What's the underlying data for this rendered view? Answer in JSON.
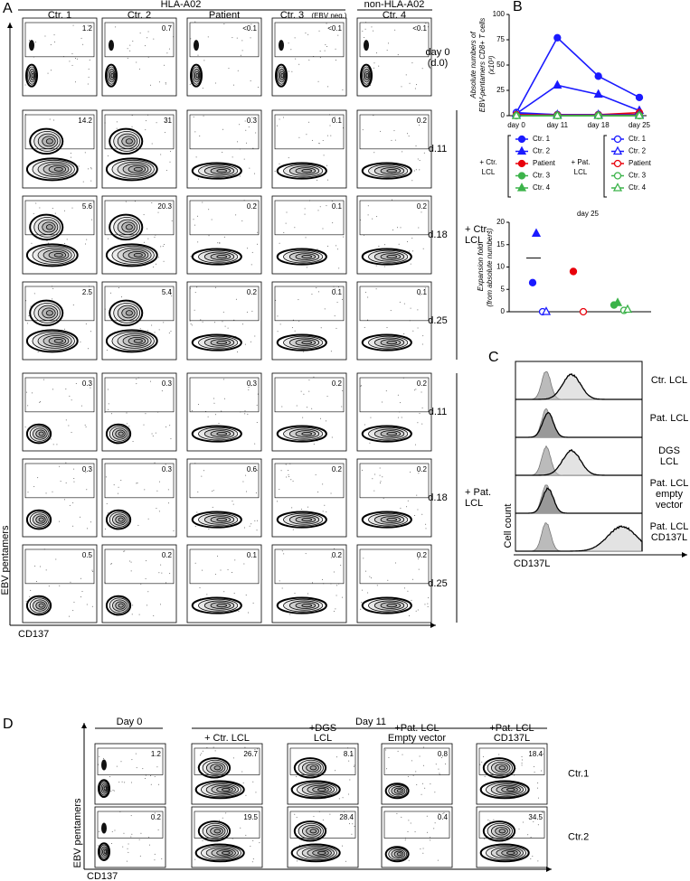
{
  "panel_labels": [
    "A",
    "B",
    "C",
    "D"
  ],
  "panel_a": {
    "group_headers": [
      "HLA-A02",
      "non-HLA-A02"
    ],
    "columns": [
      "Ctr. 1",
      "Ctr. 2",
      "Patient",
      "Ctr. 3",
      "Ctr. 4"
    ],
    "column_note": "(EBV neg.)",
    "y_label": "EBV pentamers",
    "x_label": "CD137",
    "rows": [
      {
        "label": [
          "day 0",
          "(d.0)"
        ],
        "values": [
          1.2,
          0.7,
          "<0.1",
          "<0.1",
          "<0.1"
        ]
      },
      {
        "label": [
          "d.11"
        ],
        "values": [
          14.2,
          31,
          0.3,
          0.1,
          0.2
        ]
      },
      {
        "label": [
          "d.18"
        ],
        "values": [
          5.6,
          20.3,
          0.2,
          0.1,
          0.2
        ]
      },
      {
        "label": [
          "d.25"
        ],
        "values": [
          2.5,
          5.4,
          0.2,
          0.1,
          0.1
        ]
      },
      {
        "label": [
          "d.11"
        ],
        "values": [
          0.3,
          0.3,
          0.3,
          0.2,
          0.2
        ]
      },
      {
        "label": [
          "d.18"
        ],
        "values": [
          0.3,
          0.3,
          0.6,
          0.2,
          0.2
        ]
      },
      {
        "label": [
          "d.25"
        ],
        "values": [
          0.5,
          0.2,
          0.1,
          0.2,
          0.2
        ]
      }
    ],
    "row_groups": [
      [
        "+ Ctr.",
        "LCL"
      ],
      [
        "+ Pat.",
        "LCL"
      ]
    ]
  },
  "chart_data": [
    {
      "type": "line",
      "y_label": [
        "Absolute numbers of",
        "EBV-pentamers CD8+ T cells",
        "(x10³)"
      ],
      "categories": [
        "day 0",
        "day 11",
        "day 18",
        "day 25"
      ],
      "ylim": [
        0,
        100
      ],
      "yticks": [
        0,
        25,
        50,
        75,
        100
      ],
      "legend_groups": [
        [
          "+ Ctr.",
          "LCL"
        ],
        [
          "+ Pat.",
          "LCL"
        ]
      ],
      "series": [
        {
          "name": "Ctr. 1",
          "color": "#1a1aff",
          "marker": "circle",
          "filled": true,
          "group": 0,
          "values": [
            3,
            77,
            39,
            18
          ]
        },
        {
          "name": "Ctr. 2",
          "color": "#1a1aff",
          "marker": "triangle",
          "filled": true,
          "group": 0,
          "values": [
            2,
            30,
            21,
            5
          ]
        },
        {
          "name": "Patient",
          "color": "#e8000b",
          "marker": "circle",
          "filled": true,
          "group": 0,
          "values": [
            1,
            1,
            1,
            3
          ]
        },
        {
          "name": "Ctr. 3",
          "color": "#3cb34a",
          "marker": "circle",
          "filled": true,
          "group": 0,
          "values": [
            0,
            0,
            0,
            0
          ]
        },
        {
          "name": "Ctr. 4",
          "color": "#3cb34a",
          "marker": "triangle",
          "filled": true,
          "group": 0,
          "values": [
            0,
            0,
            0,
            0
          ]
        },
        {
          "name": "Ctr. 1",
          "color": "#1a1aff",
          "marker": "circle",
          "filled": false,
          "group": 1,
          "values": [
            3,
            1,
            1,
            1
          ]
        },
        {
          "name": "Ctr. 2",
          "color": "#1a1aff",
          "marker": "triangle",
          "filled": false,
          "group": 1,
          "values": [
            2,
            1,
            1,
            1
          ]
        },
        {
          "name": "Patient",
          "color": "#e8000b",
          "marker": "circle",
          "filled": false,
          "group": 1,
          "values": [
            1,
            0.5,
            0.5,
            0.5
          ]
        },
        {
          "name": "Ctr. 3",
          "color": "#3cb34a",
          "marker": "circle",
          "filled": false,
          "group": 1,
          "values": [
            0,
            0,
            0,
            0
          ]
        },
        {
          "name": "Ctr. 4",
          "color": "#3cb34a",
          "marker": "triangle",
          "filled": false,
          "group": 1,
          "values": [
            0,
            0,
            0,
            0
          ]
        }
      ]
    },
    {
      "type": "dot",
      "title": "day 25",
      "y_label": [
        "Expansion fold",
        "(from absolute numbers)"
      ],
      "categories": [
        null,
        null,
        null,
        null,
        null,
        null
      ],
      "ylim": [
        0,
        20
      ],
      "yticks": [
        0,
        5,
        10,
        15,
        20
      ],
      "means": [
        12,
        null,
        null,
        null,
        null,
        null
      ],
      "series": [
        {
          "color": "#1a1aff",
          "marker": "circle",
          "filled": true,
          "values": [
            6.5,
            null,
            null,
            null,
            null,
            null
          ]
        },
        {
          "color": "#1a1aff",
          "marker": "triangle",
          "filled": true,
          "values": [
            17.5,
            null,
            null,
            null,
            null,
            null
          ]
        },
        {
          "color": "#1a1aff",
          "marker": "circle",
          "filled": false,
          "values": [
            null,
            0,
            null,
            null,
            null,
            null
          ]
        },
        {
          "color": "#1a1aff",
          "marker": "triangle",
          "filled": false,
          "values": [
            null,
            0,
            null,
            null,
            null,
            null
          ]
        },
        {
          "color": "#e8000b",
          "marker": "circle",
          "filled": true,
          "values": [
            null,
            null,
            9,
            null,
            null,
            null
          ]
        },
        {
          "color": "#e8000b",
          "marker": "circle",
          "filled": false,
          "values": [
            null,
            null,
            null,
            0,
            null,
            null
          ]
        },
        {
          "color": "#3cb34a",
          "marker": "circle",
          "filled": true,
          "values": [
            null,
            null,
            null,
            null,
            1.5,
            null
          ]
        },
        {
          "color": "#3cb34a",
          "marker": "triangle",
          "filled": true,
          "values": [
            null,
            null,
            null,
            null,
            2,
            null
          ]
        },
        {
          "color": "#3cb34a",
          "marker": "circle",
          "filled": false,
          "values": [
            null,
            null,
            null,
            null,
            null,
            0.3
          ]
        },
        {
          "color": "#3cb34a",
          "marker": "triangle",
          "filled": false,
          "values": [
            null,
            null,
            null,
            null,
            null,
            0.5
          ]
        }
      ]
    }
  ],
  "panel_c": {
    "labels": [
      [
        "Ctr. LCL"
      ],
      [
        "Pat. LCL"
      ],
      [
        "DGS",
        "LCL"
      ],
      [
        "Pat. LCL",
        "empty",
        "vector"
      ],
      [
        "Pat. LCL",
        "CD137L"
      ]
    ],
    "y_label": "Cell count",
    "x_label": "CD137L"
  },
  "panel_d": {
    "day0_header": "Day 0",
    "day11_header": "Day 11",
    "conditions": [
      [
        "+ Ctr. LCL"
      ],
      [
        "+DGS",
        "LCL"
      ],
      [
        "+Pat. LCL",
        "Empty vector"
      ],
      [
        "+Pat. LCL",
        "CD137L"
      ]
    ],
    "rows": [
      {
        "label": "Ctr.1",
        "values": [
          1.2,
          26.7,
          8.1,
          0.8,
          18.4
        ]
      },
      {
        "label": "Ctr.2",
        "values": [
          0.2,
          19.5,
          28.4,
          0.4,
          34.5
        ]
      }
    ],
    "y_label": "EBV pentamers",
    "x_label": "CD137"
  }
}
